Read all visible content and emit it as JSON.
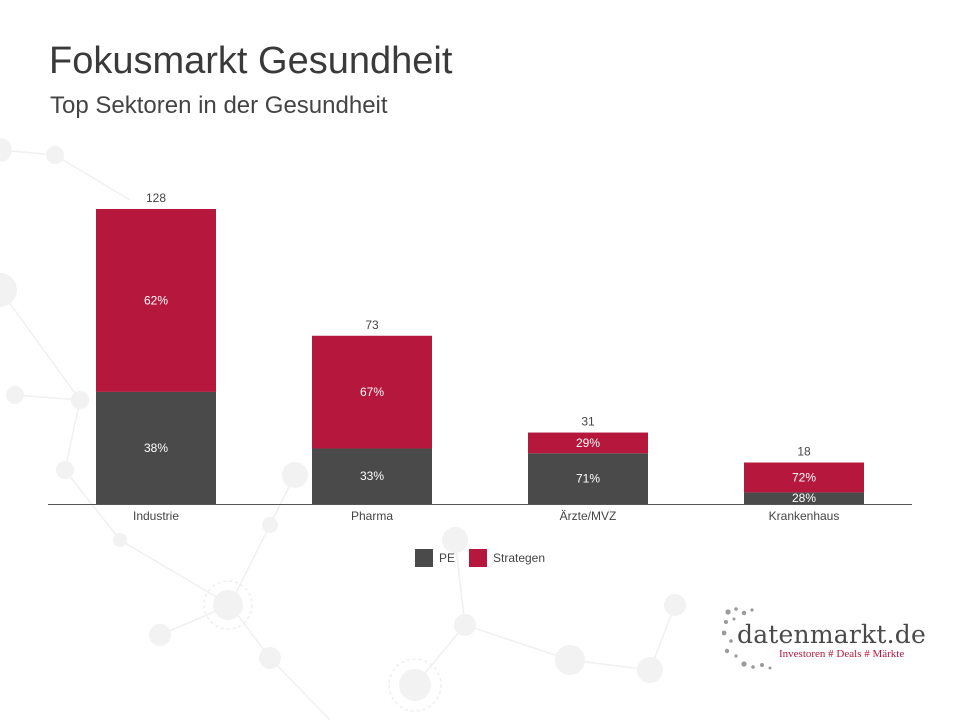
{
  "header": {
    "title": "Fokusmarkt Gesundheit",
    "subtitle": "Top Sektoren in der Gesundheit"
  },
  "colors": {
    "pe": "#4a4a4a",
    "strategen": "#b5173d"
  },
  "chart_data": {
    "type": "bar",
    "stacked": true,
    "categories": [
      "Industrie",
      "Pharma",
      "Ärzte/MVZ",
      "Krankenhaus"
    ],
    "totals": [
      128,
      73,
      31,
      18
    ],
    "series": [
      {
        "name": "PE",
        "shares": [
          38,
          33,
          71,
          28
        ],
        "share_labels": [
          "38%",
          "33%",
          "71%",
          "28%"
        ]
      },
      {
        "name": "Strategen",
        "shares": [
          62,
          67,
          29,
          72
        ],
        "share_labels": [
          "62%",
          "67%",
          "29%",
          "72%"
        ]
      }
    ],
    "grid": false,
    "legend": "bottom-center"
  },
  "legend": {
    "items": [
      {
        "label": "PE",
        "color": "#4a4a4a"
      },
      {
        "label": "Strategen",
        "color": "#b5173d"
      }
    ]
  },
  "logo": {
    "name": "datenmarkt.de",
    "tagline": "Investoren # Deals # Märkte"
  }
}
